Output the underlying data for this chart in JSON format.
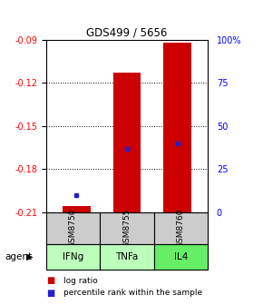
{
  "title": "GDS499 / 5656",
  "categories": [
    "GSM8750",
    "GSM8755",
    "GSM8760"
  ],
  "agents": [
    "IFNg",
    "TNFa",
    "IL4"
  ],
  "ylim": [
    -0.21,
    -0.09
  ],
  "yticks_left": [
    -0.21,
    -0.18,
    -0.15,
    -0.12,
    -0.09
  ],
  "yticks_right": [
    0,
    25,
    50,
    75,
    100
  ],
  "bar_bottoms": [
    -0.21,
    -0.21,
    -0.21
  ],
  "bar_tops": [
    -0.206,
    -0.113,
    -0.092
  ],
  "blue_y": [
    -0.198,
    -0.166,
    -0.162
  ],
  "bar_color": "#cc0000",
  "blue_color": "#2222cc",
  "sample_bg": "#cccccc",
  "agent_bg_colors": [
    "#bbffbb",
    "#bbffbb",
    "#66ee66"
  ],
  "legend_red_label": "log ratio",
  "legend_blue_label": "percentile rank within the sample",
  "bar_width": 0.55
}
